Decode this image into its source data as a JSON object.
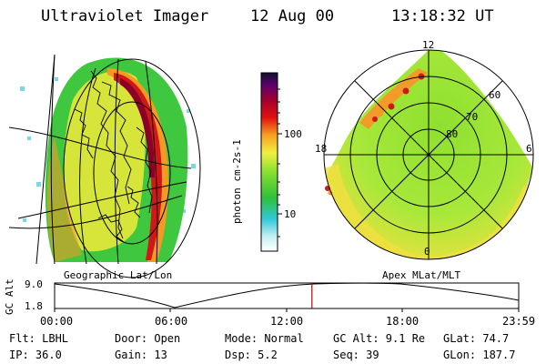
{
  "header": {
    "title": "Ultraviolet Imager",
    "date": "12 Aug 00",
    "time": "13:18:32 UT"
  },
  "colorbar": {
    "label": "photon cm-2s-1",
    "ticks": [
      "100",
      "10"
    ]
  },
  "left_panel": {
    "caption": "Geographic Lat/Lon"
  },
  "right_panel": {
    "caption": "Apex MLat/MLT",
    "mlt_labels": {
      "top": "12",
      "left": "18",
      "right": "6",
      "bottom": "0"
    },
    "lat_labels": [
      "60",
      "70",
      "80"
    ]
  },
  "timeline": {
    "ylabel": "GC Alt",
    "yticks": [
      "9.0",
      "1.8"
    ],
    "xticks": [
      "00:00",
      "06:00",
      "12:00",
      "18:00",
      "23:59"
    ],
    "current_fraction": 0.5545
  },
  "info": {
    "flt": "Flt: LBHL",
    "ip": "IP: 36.0",
    "door": "Door: Open",
    "gain": "Gain: 13",
    "mode": "Mode: Normal",
    "dsp": "Dsp:    5.2",
    "gcalt": "GC Alt: 9.1 Re",
    "seq": "Seq: 39",
    "glat": "GLat:  74.7",
    "glon": "GLon: 187.7"
  }
}
